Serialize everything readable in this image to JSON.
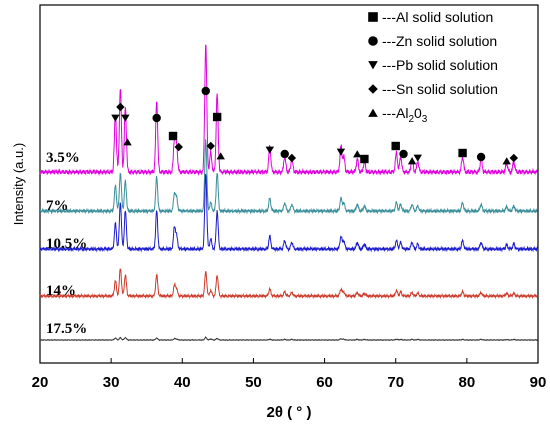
{
  "chart_data": {
    "type": "line",
    "xlabel": "2θ ( ° )",
    "ylabel": "Intensity (a.u.)",
    "xlim": [
      20,
      90
    ],
    "xticks": [
      20,
      30,
      40,
      50,
      60,
      70,
      80,
      90
    ],
    "grid": false,
    "legend_position": "top-right",
    "series": [
      {
        "name": "3.5%",
        "color": "#e000e0"
      },
      {
        "name": "7%",
        "color": "#3a8e9a"
      },
      {
        "name": "10.5%",
        "color": "#1a1acc"
      },
      {
        "name": "14%",
        "color": "#cc3a2a"
      },
      {
        "name": "17.5%",
        "color": "#333333"
      }
    ],
    "peaks": [
      {
        "pos": 30.6,
        "rel": [
          0.45,
          0.3,
          0.3,
          0.22,
          0.1
        ]
      },
      {
        "pos": 31.3,
        "rel": [
          0.65,
          0.45,
          0.55,
          0.4,
          0.12
        ]
      },
      {
        "pos": 32.0,
        "rel": [
          0.5,
          0.35,
          0.45,
          0.3,
          0.12
        ]
      },
      {
        "pos": 36.4,
        "rel": [
          0.55,
          0.4,
          0.45,
          0.3,
          0.1
        ]
      },
      {
        "pos": 38.9,
        "rel": [
          0.25,
          0.2,
          0.25,
          0.15,
          0.06
        ]
      },
      {
        "pos": 39.2,
        "rel": [
          0.2,
          0.15,
          0.15,
          0.1,
          0.05
        ]
      },
      {
        "pos": 43.3,
        "rel": [
          1.0,
          0.85,
          0.9,
          0.35,
          0.13
        ]
      },
      {
        "pos": 44.0,
        "rel": [
          0.15,
          0.1,
          0.12,
          0.08,
          0.05
        ]
      },
      {
        "pos": 44.9,
        "rel": [
          0.6,
          0.45,
          0.45,
          0.3,
          0.08
        ]
      },
      {
        "pos": 52.3,
        "rel": [
          0.2,
          0.15,
          0.15,
          0.1,
          0.04
        ]
      },
      {
        "pos": 54.4,
        "rel": [
          0.12,
          0.1,
          0.1,
          0.06,
          0.03
        ]
      },
      {
        "pos": 55.4,
        "rel": [
          0.1,
          0.08,
          0.08,
          0.05,
          0.03
        ]
      },
      {
        "pos": 62.3,
        "rel": [
          0.2,
          0.15,
          0.15,
          0.1,
          0.06
        ]
      },
      {
        "pos": 62.7,
        "rel": [
          0.12,
          0.1,
          0.1,
          0.06,
          0.04
        ]
      },
      {
        "pos": 64.6,
        "rel": [
          0.1,
          0.08,
          0.08,
          0.05,
          0.03
        ]
      },
      {
        "pos": 65.6,
        "rel": [
          0.08,
          0.06,
          0.06,
          0.04,
          0.03
        ]
      },
      {
        "pos": 70.1,
        "rel": [
          0.15,
          0.1,
          0.1,
          0.08,
          0.04
        ]
      },
      {
        "pos": 70.7,
        "rel": [
          0.12,
          0.08,
          0.08,
          0.06,
          0.03
        ]
      },
      {
        "pos": 72.3,
        "rel": [
          0.1,
          0.08,
          0.08,
          0.05,
          0.03
        ]
      },
      {
        "pos": 73.1,
        "rel": [
          0.08,
          0.06,
          0.06,
          0.04,
          0.03
        ]
      },
      {
        "pos": 79.4,
        "rel": [
          0.12,
          0.1,
          0.1,
          0.06,
          0.03
        ]
      },
      {
        "pos": 82.0,
        "rel": [
          0.1,
          0.08,
          0.08,
          0.05,
          0.03
        ]
      },
      {
        "pos": 85.6,
        "rel": [
          0.07,
          0.05,
          0.05,
          0.04,
          0.02
        ]
      },
      {
        "pos": 86.6,
        "rel": [
          0.08,
          0.06,
          0.06,
          0.04,
          0.03
        ]
      }
    ],
    "legend": [
      {
        "marker": "square",
        "text": "---Al solid solution"
      },
      {
        "marker": "circle",
        "text": "---Zn solid solution"
      },
      {
        "marker": "triangle-down",
        "text": "---Pb solid solution"
      },
      {
        "marker": "diamond",
        "text": "---Sn solid solution"
      },
      {
        "marker": "triangle-up",
        "text": "---Al",
        "sub1": "2",
        "mid": "0",
        "sub2": "3"
      }
    ],
    "annotations": [
      {
        "marker": "triangle-down",
        "x": 30.6
      },
      {
        "marker": "diamond",
        "x": 31.3
      },
      {
        "marker": "triangle-down",
        "x": 32.0
      },
      {
        "marker": "triangle-up",
        "x": 32.3
      },
      {
        "marker": "circle",
        "x": 36.4
      },
      {
        "marker": "square",
        "x": 38.7
      },
      {
        "marker": "diamond",
        "x": 39.5
      },
      {
        "marker": "circle",
        "x": 43.3
      },
      {
        "marker": "diamond",
        "x": 44.0
      },
      {
        "marker": "square",
        "x": 44.9
      },
      {
        "marker": "triangle-up",
        "x": 45.4
      },
      {
        "marker": "triangle-down",
        "x": 52.3
      },
      {
        "marker": "circle",
        "x": 54.4
      },
      {
        "marker": "diamond",
        "x": 55.4
      },
      {
        "marker": "triangle-down",
        "x": 62.3
      },
      {
        "marker": "triangle-up",
        "x": 64.6
      },
      {
        "marker": "square",
        "x": 65.6
      },
      {
        "marker": "square",
        "x": 70.0
      },
      {
        "marker": "circle",
        "x": 71.1
      },
      {
        "marker": "triangle-up",
        "x": 72.3
      },
      {
        "marker": "triangle-down",
        "x": 73.1
      },
      {
        "marker": "square",
        "x": 79.4
      },
      {
        "marker": "circle",
        "x": 82.0
      },
      {
        "marker": "triangle-up",
        "x": 85.6
      },
      {
        "marker": "diamond",
        "x": 86.6
      }
    ]
  }
}
